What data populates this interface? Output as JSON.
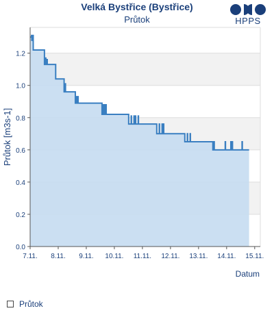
{
  "chart_data": {
    "type": "area",
    "title": "Velká Bystřice (Bystřice)",
    "subtitle": "Průtok",
    "ylabel": "Průtok [m3s-1]",
    "xlabel": "Datum",
    "ylim": [
      0,
      1.36
    ],
    "yticks": [
      0.0,
      0.2,
      0.4,
      0.6,
      0.8,
      1.0,
      1.2
    ],
    "ytick_labels": [
      "0.0",
      "0.2",
      "0.4",
      "0.6",
      "0.8",
      "1.0",
      "1.2"
    ],
    "xlim": [
      7.0,
      15.2
    ],
    "xticks": [
      7,
      8,
      9,
      10,
      11,
      12,
      13,
      14,
      15
    ],
    "xtick_labels": [
      "7.11.",
      "8.11.",
      "9.11.",
      "10.11.",
      "11.11.",
      "12.11.",
      "13.11.",
      "14.11.",
      "15.11."
    ],
    "grid": true,
    "legend": "bottom-left",
    "series": [
      {
        "name": "Průtok",
        "color": "#3a7fc1",
        "fill": "#c5dbf1",
        "x": [
          7.0,
          7.05,
          7.06,
          7.1,
          7.11,
          7.2,
          7.21,
          7.35,
          7.36,
          7.5,
          7.51,
          7.55,
          7.56,
          7.6,
          7.61,
          7.9,
          7.91,
          8.05,
          8.06,
          8.15,
          8.16,
          8.2,
          8.21,
          8.25,
          8.26,
          8.6,
          8.61,
          8.65,
          8.66,
          8.7,
          8.71,
          9.55,
          9.56,
          9.6,
          9.61,
          9.65,
          9.66,
          9.7,
          9.71,
          10.5,
          10.51,
          10.6,
          10.61,
          10.7,
          10.71,
          10.75,
          10.76,
          10.85,
          10.86,
          11.5,
          11.51,
          11.6,
          11.61,
          11.7,
          11.71,
          11.75,
          11.76,
          12.5,
          12.51,
          12.6,
          12.61,
          12.7,
          12.71,
          13.5,
          13.51,
          13.55,
          13.56,
          13.9,
          13.91,
          13.95,
          13.96,
          14.1,
          14.11,
          14.15,
          14.16,
          14.2,
          14.21,
          14.5,
          14.51,
          14.55,
          14.56,
          14.8
        ],
        "y": [
          1.3,
          1.31,
          1.28,
          1.31,
          1.22,
          1.22,
          1.22,
          1.22,
          1.22,
          1.22,
          1.13,
          1.17,
          1.13,
          1.16,
          1.13,
          1.13,
          1.04,
          1.04,
          1.04,
          1.04,
          1.04,
          1.04,
          0.96,
          1.01,
          0.96,
          0.96,
          0.89,
          0.93,
          0.89,
          0.93,
          0.89,
          0.89,
          0.82,
          0.88,
          0.82,
          0.88,
          0.82,
          0.88,
          0.82,
          0.82,
          0.76,
          0.81,
          0.76,
          0.81,
          0.76,
          0.81,
          0.76,
          0.81,
          0.76,
          0.76,
          0.7,
          0.76,
          0.7,
          0.76,
          0.7,
          0.76,
          0.7,
          0.7,
          0.65,
          0.7,
          0.65,
          0.7,
          0.65,
          0.65,
          0.6,
          0.65,
          0.6,
          0.6,
          0.6,
          0.65,
          0.6,
          0.6,
          0.6,
          0.65,
          0.6,
          0.65,
          0.6,
          0.6,
          0.6,
          0.65,
          0.6,
          0.6
        ]
      }
    ]
  },
  "logo": {
    "text": "HPPS",
    "color": "#1a3f7a"
  },
  "legend_label": "Průtok"
}
